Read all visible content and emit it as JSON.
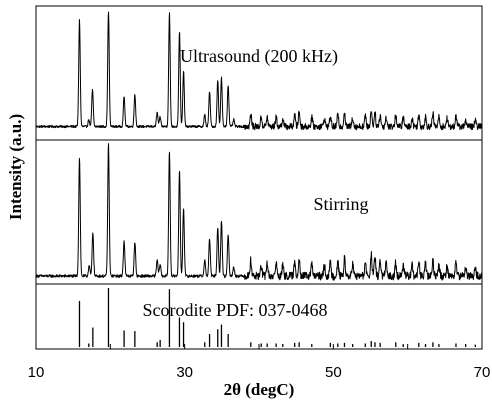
{
  "chart_data": {
    "type": "line",
    "title": "",
    "xlabel": "2θ (degC)",
    "ylabel": "Intensity (a.u.)",
    "xlim": [
      10,
      70
    ],
    "x_ticks": [
      "10",
      "30",
      "50",
      "70"
    ],
    "grid": false,
    "legend": "none",
    "panels": [
      {
        "name": "Ultrasound (200 kHz)",
        "baseline": 0.03,
        "noise": 0.055,
        "peaks": [
          [
            15.85,
            0.92
          ],
          [
            17.1,
            0.06
          ],
          [
            17.6,
            0.32
          ],
          [
            19.75,
            1.0
          ],
          [
            21.85,
            0.26
          ],
          [
            23.3,
            0.28
          ],
          [
            26.3,
            0.12
          ],
          [
            26.7,
            0.08
          ],
          [
            27.95,
            0.98
          ],
          [
            29.3,
            0.82
          ],
          [
            29.85,
            0.48
          ],
          [
            32.7,
            0.1
          ],
          [
            33.35,
            0.3
          ],
          [
            34.45,
            0.4
          ],
          [
            34.95,
            0.42
          ],
          [
            35.85,
            0.36
          ],
          [
            36.6,
            0.06
          ],
          [
            38.9,
            0.1
          ],
          [
            40.3,
            0.08
          ],
          [
            41.1,
            0.08
          ],
          [
            42.3,
            0.08
          ],
          [
            43.2,
            0.07
          ],
          [
            44.8,
            0.1
          ],
          [
            45.4,
            0.13
          ],
          [
            47.1,
            0.08
          ],
          [
            48.8,
            0.07
          ],
          [
            49.6,
            0.09
          ],
          [
            50.6,
            0.1
          ],
          [
            51.5,
            0.12
          ],
          [
            52.6,
            0.08
          ],
          [
            54.3,
            0.09
          ],
          [
            55.1,
            0.14
          ],
          [
            55.6,
            0.12
          ],
          [
            56.3,
            0.1
          ],
          [
            57.1,
            0.08
          ],
          [
            58.4,
            0.1
          ],
          [
            59.4,
            0.08
          ],
          [
            60.6,
            0.07
          ],
          [
            61.5,
            0.1
          ],
          [
            62.4,
            0.08
          ],
          [
            63.4,
            0.11
          ],
          [
            64.2,
            0.08
          ],
          [
            65.3,
            0.07
          ],
          [
            66.5,
            0.09
          ],
          [
            67.8,
            0.06
          ],
          [
            69.1,
            0.05
          ]
        ]
      },
      {
        "name": "Stirring",
        "baseline": 0.03,
        "noise": 0.06,
        "peaks": [
          [
            15.85,
            0.9
          ],
          [
            17.15,
            0.08
          ],
          [
            17.65,
            0.33
          ],
          [
            19.75,
            1.0
          ],
          [
            21.85,
            0.27
          ],
          [
            23.3,
            0.26
          ],
          [
            26.3,
            0.12
          ],
          [
            26.7,
            0.09
          ],
          [
            27.95,
            0.95
          ],
          [
            29.3,
            0.8
          ],
          [
            29.85,
            0.52
          ],
          [
            32.7,
            0.12
          ],
          [
            33.35,
            0.28
          ],
          [
            34.45,
            0.36
          ],
          [
            34.95,
            0.42
          ],
          [
            35.85,
            0.32
          ],
          [
            36.6,
            0.07
          ],
          [
            38.9,
            0.12
          ],
          [
            40.3,
            0.08
          ],
          [
            41.1,
            0.1
          ],
          [
            42.3,
            0.1
          ],
          [
            43.2,
            0.08
          ],
          [
            44.8,
            0.1
          ],
          [
            45.4,
            0.14
          ],
          [
            47.1,
            0.09
          ],
          [
            48.8,
            0.08
          ],
          [
            49.6,
            0.1
          ],
          [
            50.6,
            0.11
          ],
          [
            51.5,
            0.13
          ],
          [
            52.6,
            0.09
          ],
          [
            54.3,
            0.1
          ],
          [
            55.1,
            0.16
          ],
          [
            55.6,
            0.14
          ],
          [
            56.3,
            0.11
          ],
          [
            57.1,
            0.09
          ],
          [
            58.4,
            0.11
          ],
          [
            59.4,
            0.09
          ],
          [
            60.6,
            0.08
          ],
          [
            61.5,
            0.11
          ],
          [
            62.4,
            0.09
          ],
          [
            63.4,
            0.12
          ],
          [
            64.2,
            0.09
          ],
          [
            65.3,
            0.08
          ],
          [
            66.5,
            0.1
          ],
          [
            67.8,
            0.07
          ],
          [
            69.1,
            0.06
          ]
        ]
      },
      {
        "name": "Scorodite PDF: 037-0468",
        "baseline": 0.0,
        "noise": 0.0,
        "sticks": [
          [
            15.85,
            0.78
          ],
          [
            17.1,
            0.06
          ],
          [
            17.65,
            0.33
          ],
          [
            19.75,
            1.0
          ],
          [
            21.85,
            0.28
          ],
          [
            23.3,
            0.27
          ],
          [
            26.3,
            0.08
          ],
          [
            26.7,
            0.12
          ],
          [
            27.95,
            0.98
          ],
          [
            29.3,
            0.5
          ],
          [
            29.85,
            0.42
          ],
          [
            32.7,
            0.08
          ],
          [
            33.35,
            0.22
          ],
          [
            34.45,
            0.3
          ],
          [
            34.95,
            0.38
          ],
          [
            35.85,
            0.22
          ],
          [
            38.9,
            0.08
          ],
          [
            40.3,
            0.06
          ],
          [
            41.1,
            0.06
          ],
          [
            42.3,
            0.06
          ],
          [
            43.2,
            0.05
          ],
          [
            44.8,
            0.07
          ],
          [
            45.4,
            0.08
          ],
          [
            47.1,
            0.05
          ],
          [
            49.6,
            0.07
          ],
          [
            50.6,
            0.06
          ],
          [
            51.5,
            0.07
          ],
          [
            52.6,
            0.05
          ],
          [
            54.3,
            0.06
          ],
          [
            55.1,
            0.1
          ],
          [
            55.6,
            0.08
          ],
          [
            56.3,
            0.07
          ],
          [
            58.4,
            0.08
          ],
          [
            59.4,
            0.05
          ],
          [
            61.5,
            0.07
          ],
          [
            62.4,
            0.05
          ],
          [
            63.4,
            0.08
          ],
          [
            64.2,
            0.05
          ],
          [
            66.5,
            0.06
          ],
          [
            67.8,
            0.05
          ],
          [
            69.1,
            0.04
          ]
        ]
      }
    ]
  }
}
